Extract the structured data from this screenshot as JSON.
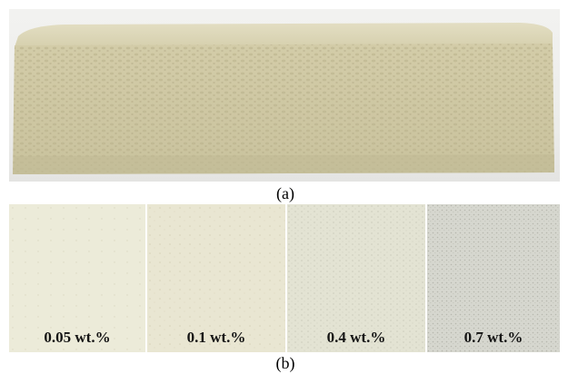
{
  "figure": {
    "caption_a": "(a)",
    "caption_b": "(b)",
    "samples": [
      {
        "label": "0.05 wt.%",
        "color": "#ecebd9"
      },
      {
        "label": "0.1 wt.%",
        "color": "#e9e6d2"
      },
      {
        "label": "0.4 wt.%",
        "color": "#e3e3d3"
      },
      {
        "label": "0.7 wt.%",
        "color": "#d6d7cf"
      }
    ],
    "foam_color": "#ddd7b8"
  }
}
